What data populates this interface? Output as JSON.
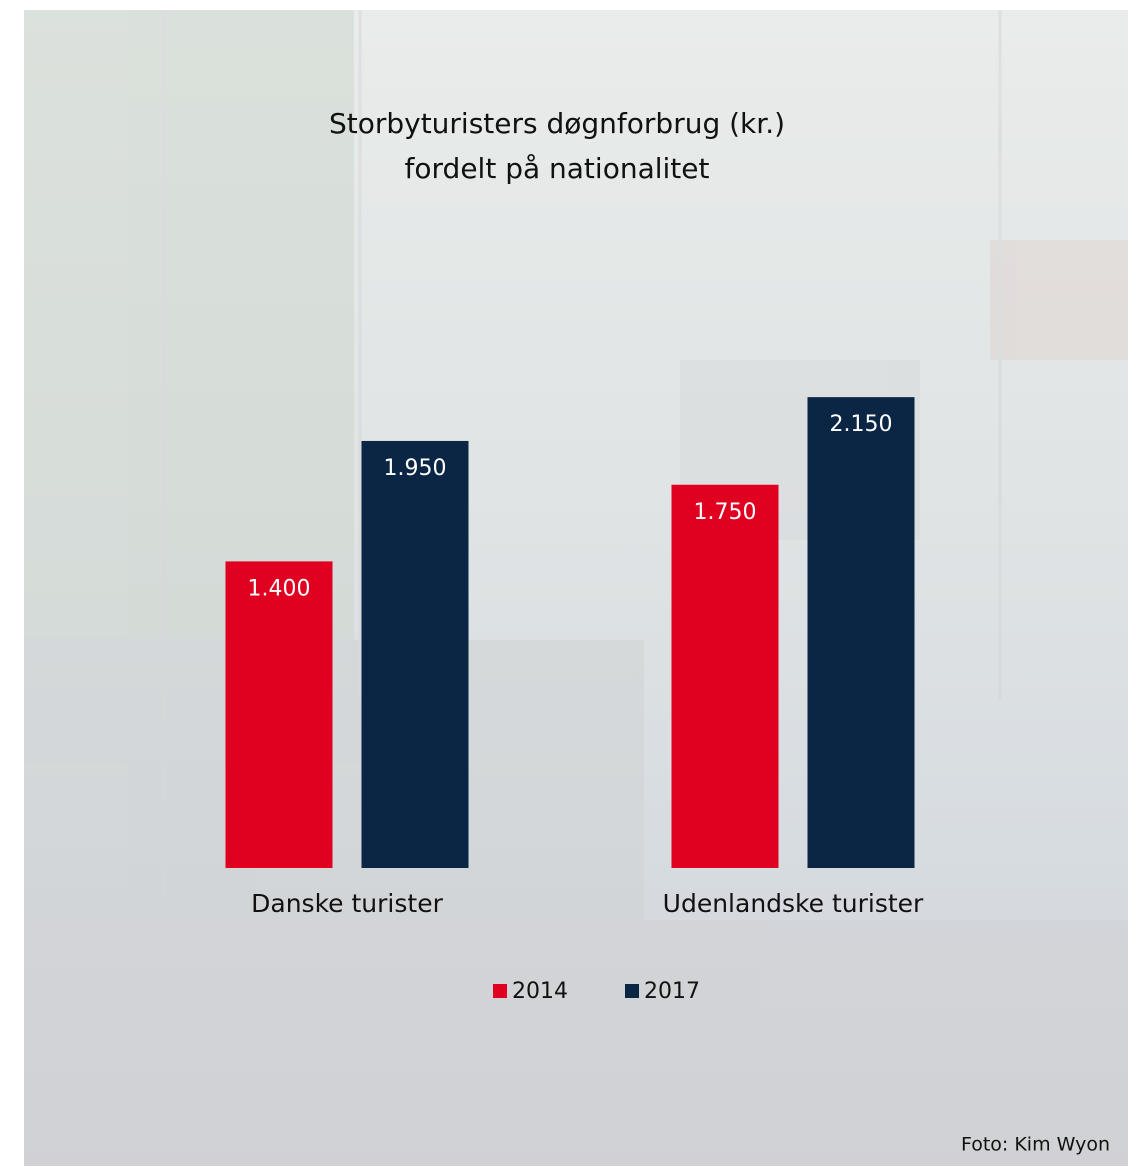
{
  "chart_data": {
    "type": "bar",
    "title": "Storbyturisters døgnforbrug (kr.)",
    "subtitle": "fordelt på nationalitet",
    "categories": [
      "Danske turister",
      "Udenlandske turister"
    ],
    "series": [
      {
        "name": "2014",
        "color": "#e0001f",
        "values": [
          1400,
          1750
        ],
        "value_labels": [
          "1.400",
          "1.750"
        ]
      },
      {
        "name": "2017",
        "color": "#0b2545",
        "values": [
          1950,
          2150
        ],
        "value_labels": [
          "1.950",
          "2.150"
        ]
      }
    ],
    "credit": "Foto: Kim Wyon"
  }
}
